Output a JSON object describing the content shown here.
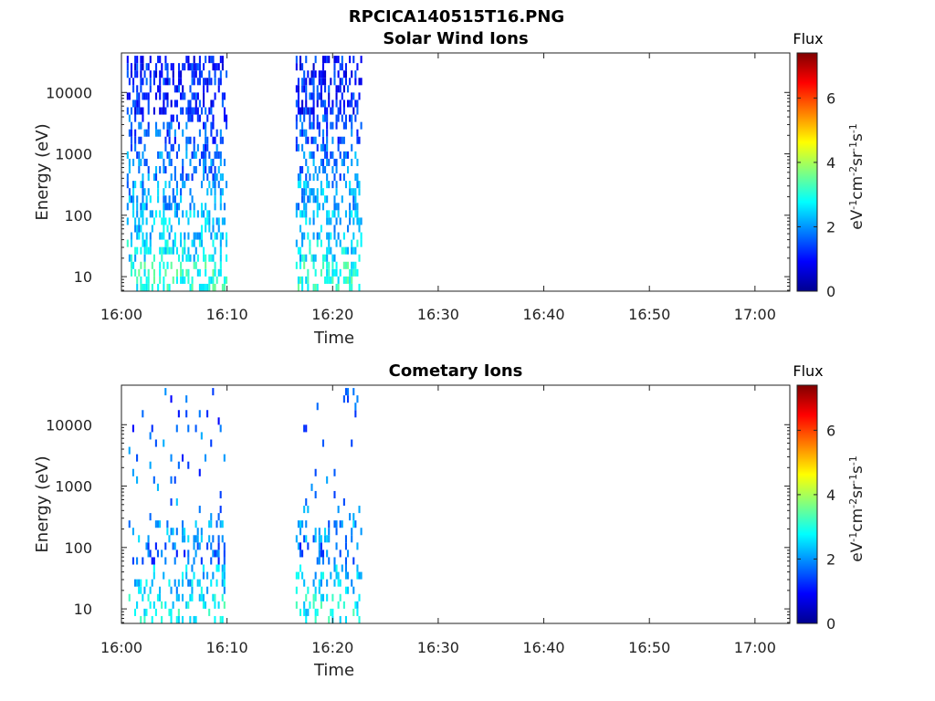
{
  "figure_title": "RPCICA140515T16.PNG",
  "colorbar": {
    "label": "Flux",
    "unit_parts": [
      "eV",
      "-1",
      "cm",
      "-2",
      "sr",
      "-1",
      "s",
      "-1"
    ],
    "ticks": [
      0,
      2,
      4,
      6
    ],
    "range": [
      0,
      7.4
    ],
    "colormap": "jet"
  },
  "chart_data": [
    {
      "type": "heatmap",
      "title": "Solar Wind Ions",
      "xlabel": "Time",
      "ylabel": "Energy (eV)",
      "x_ticks": [
        "16:00",
        "16:10",
        "16:20",
        "16:30",
        "16:40",
        "16:50",
        "17:00"
      ],
      "xlim_minutes": [
        0,
        63.3
      ],
      "y_ticks": [
        10,
        100,
        1000,
        10000
      ],
      "ylim": [
        5.8,
        44000
      ],
      "y_scale": "log",
      "active_intervals": [
        {
          "start": "16:00:30",
          "end": "16:10:00"
        },
        {
          "start": "16:16:30",
          "end": "16:22:40"
        }
      ],
      "energy_flux_profile": [
        {
          "energy_eV": 12,
          "flux": 3.0
        },
        {
          "energy_eV": 30,
          "flux": 2.6
        },
        {
          "energy_eV": 70,
          "flux": 2.3
        },
        {
          "energy_eV": 200,
          "flux": 2.1
        },
        {
          "energy_eV": 600,
          "flux": 1.8
        },
        {
          "energy_eV": 2000,
          "flux": 1.5
        },
        {
          "energy_eV": 10000,
          "flux": 1.2
        },
        {
          "energy_eV": 30000,
          "flux": 1.1
        }
      ]
    },
    {
      "type": "heatmap",
      "title": "Cometary Ions",
      "xlabel": "Time",
      "ylabel": "Energy (eV)",
      "x_ticks": [
        "16:00",
        "16:10",
        "16:20",
        "16:30",
        "16:40",
        "16:50",
        "17:00"
      ],
      "xlim_minutes": [
        0,
        63.3
      ],
      "y_ticks": [
        10,
        100,
        1000,
        10000
      ],
      "ylim": [
        5.8,
        44000
      ],
      "y_scale": "log",
      "active_intervals": [
        {
          "start": "16:00:40",
          "end": "16:09:50"
        },
        {
          "start": "16:16:30",
          "end": "16:22:40"
        }
      ],
      "energy_flux_profile": [
        {
          "energy_eV": 12,
          "flux": 2.8
        },
        {
          "energy_eV": 30,
          "flux": 2.4
        },
        {
          "energy_eV": 80,
          "flux": 1.6
        },
        {
          "energy_eV": 150,
          "flux": 2.0
        },
        {
          "energy_eV": 600,
          "flux": 1.8
        },
        {
          "energy_eV": 3000,
          "flux": 1.6
        },
        {
          "energy_eV": 15000,
          "flux": 1.5
        }
      ]
    }
  ]
}
